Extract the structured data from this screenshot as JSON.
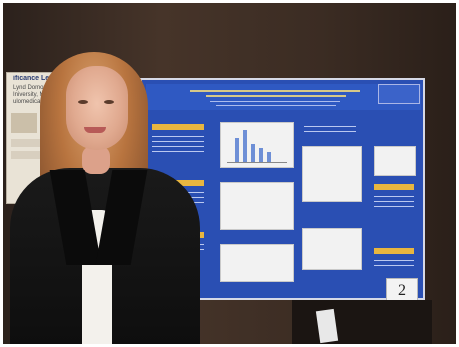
{
  "scene": {
    "description_visible": "",
    "left_poster": {
      "title_text": "ificance Le",
      "lines": [
        "Lynd Domonsky*",
        "Iniversity, Mt.",
        "ulomedical Hospital"
      ]
    },
    "main_poster": {
      "number": "2"
    }
  },
  "colors": {
    "poster_blue": "#2a4fb3",
    "accent_gold": "#e8b640",
    "jacket_black": "#111111",
    "hair_auburn": "#b8743f"
  }
}
